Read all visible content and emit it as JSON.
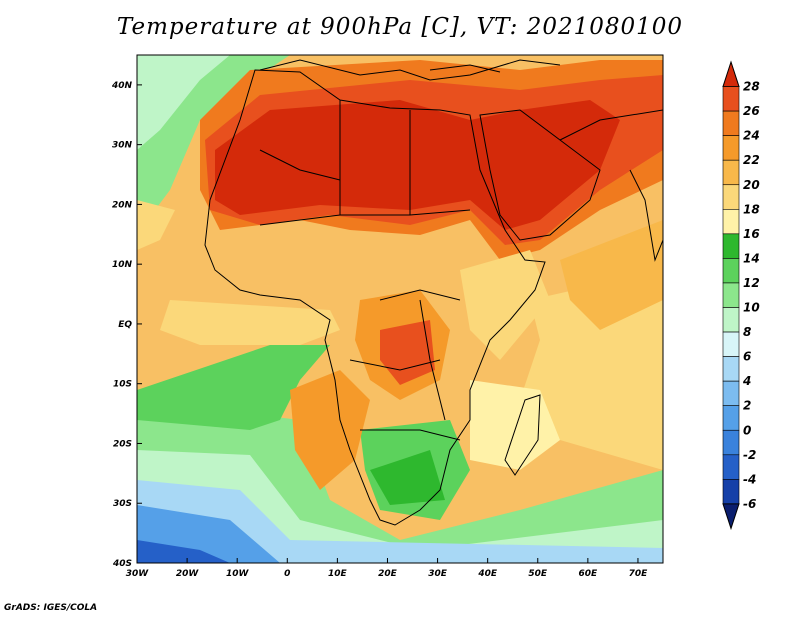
{
  "title": "Temperature at 900hPa [C], VT: 2021080100",
  "credit": "GrADS: IGES/COLA",
  "map": {
    "lon_labels": [
      "30W",
      "20W",
      "10W",
      "0",
      "10E",
      "20E",
      "30E",
      "40E",
      "50E",
      "60E",
      "70E"
    ],
    "lat_labels": [
      "40N",
      "30N",
      "20N",
      "10N",
      "EQ",
      "10S",
      "20S",
      "30S",
      "40S"
    ],
    "lon_range": [
      -30,
      75
    ],
    "lat_range": [
      -40,
      45
    ]
  },
  "colorbar": {
    "labels": [
      "28",
      "26",
      "24",
      "22",
      "20",
      "18",
      "16",
      "14",
      "12",
      "10",
      "8",
      "6",
      "4",
      "2",
      "0",
      "-2",
      "-4",
      "-6"
    ],
    "colors": [
      "#d42a0a",
      "#e8501e",
      "#f07a1e",
      "#f59a2a",
      "#f8b84a",
      "#fbd87a",
      "#fff2a8",
      "#2eb82e",
      "#5cd25c",
      "#8ce68c",
      "#bff5c8",
      "#d8f5f8",
      "#a8d8f5",
      "#7cbcf0",
      "#55a0e8",
      "#3a82dc",
      "#2560c8",
      "#1540a8",
      "#0a1e6e"
    ]
  }
}
